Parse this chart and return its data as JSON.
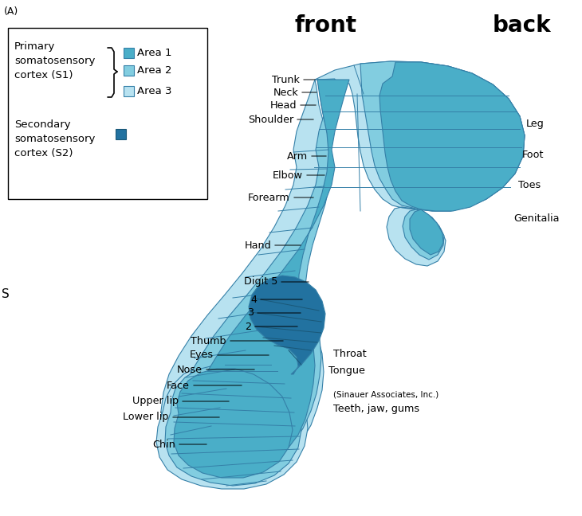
{
  "color_area1": "#4AAEC8",
  "color_area2": "#82CDE0",
  "color_area3": "#B8E2F0",
  "color_s2": "#2272A0",
  "color_outline": "#3580A8",
  "bg_color": "#ffffff",
  "header_front": "front",
  "header_back": "back",
  "label_a": "(A)"
}
